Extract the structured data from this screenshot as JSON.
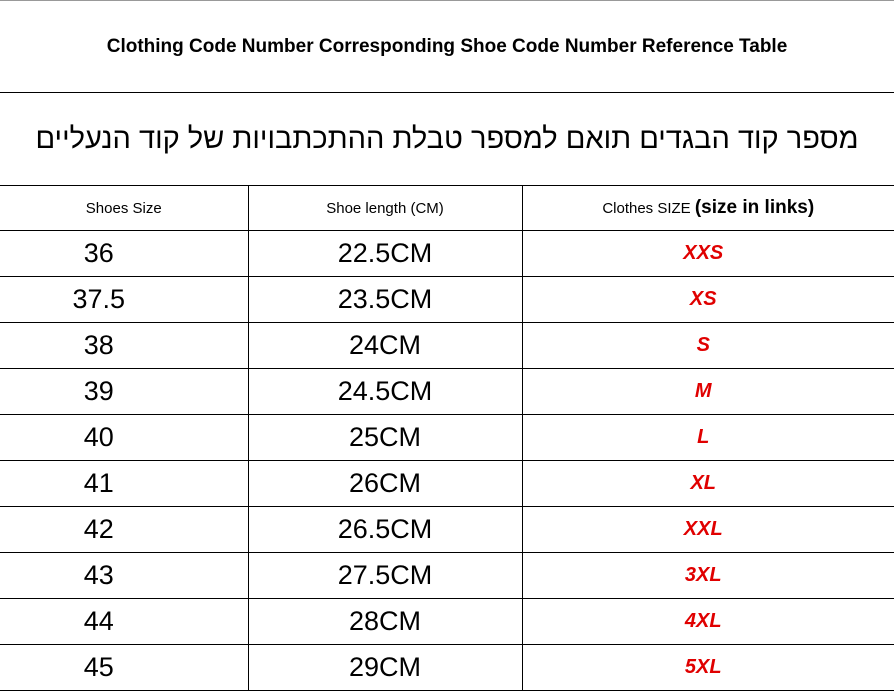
{
  "title": "Clothing Code Number Corresponding Shoe Code Number Reference Table",
  "subtitle": "מספר קוד הבגדים תואם למספר טבלת ההתכתבויות של קוד הנעליים",
  "table": {
    "header": [
      "Shoes Size",
      "Shoe length (CM)",
      {
        "text": "Clothes SIZE",
        "note": "(size in links)"
      }
    ],
    "rows": [
      [
        "36",
        "22.5CM",
        "XXS"
      ],
      [
        "37.5",
        "23.5CM",
        "XS"
      ],
      [
        "38",
        "24CM",
        "S"
      ],
      [
        "39",
        "24.5CM",
        "M"
      ],
      [
        "40",
        "25CM",
        "L"
      ],
      [
        "41",
        "26CM",
        "XL"
      ],
      [
        "42",
        "26.5CM",
        "XXL"
      ],
      [
        "43",
        "27.5CM",
        "3XL"
      ],
      [
        "44",
        "28CM",
        "4XL"
      ],
      [
        "45",
        "29CM",
        "5XL"
      ]
    ]
  }
}
